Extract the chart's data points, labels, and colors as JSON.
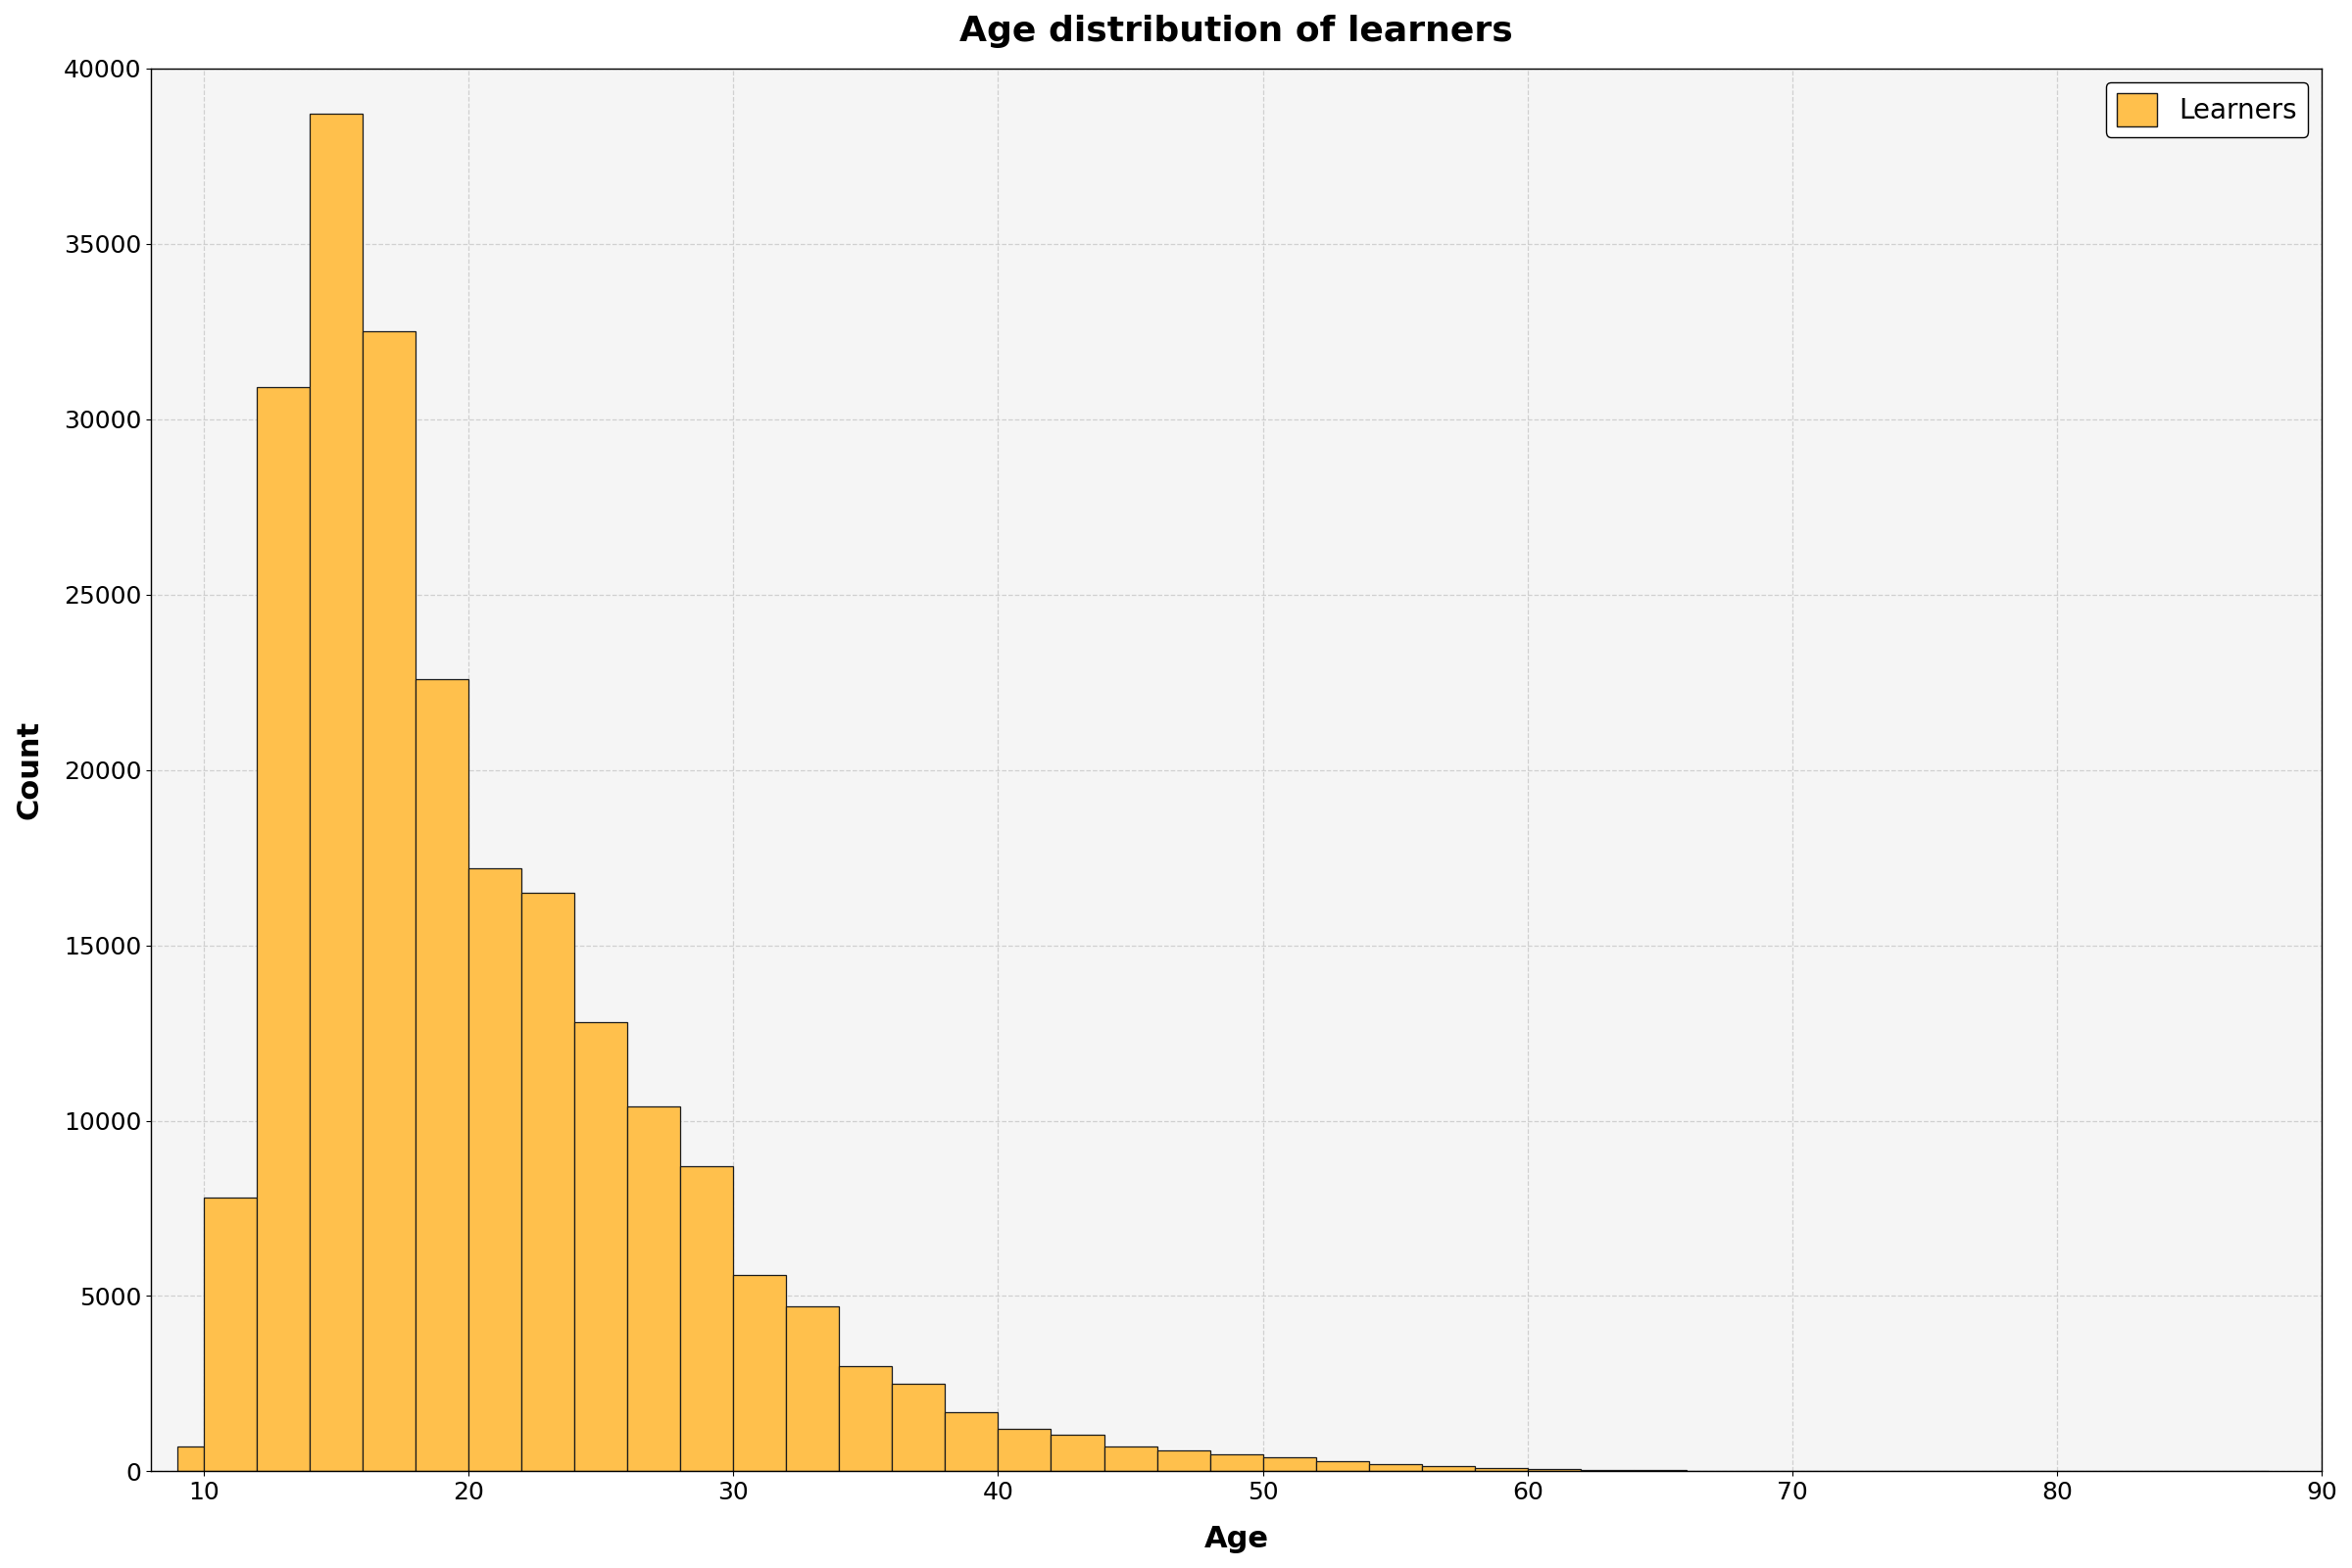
{
  "title": "Age distribution of learners",
  "xlabel": "Age",
  "ylabel": "Count",
  "bar_color": "#FFC04C",
  "bar_edgecolor": "#1a1a1a",
  "legend_label": "Learners",
  "xlim": [
    8,
    90
  ],
  "ylim": [
    0,
    40000
  ],
  "yticks": [
    0,
    5000,
    10000,
    15000,
    20000,
    25000,
    30000,
    35000,
    40000
  ],
  "xticks": [
    10,
    20,
    30,
    40,
    50,
    60,
    70,
    80,
    90
  ],
  "bin_left_edges": [
    9,
    10,
    12,
    14,
    16,
    18,
    20,
    22,
    24,
    26,
    28,
    30,
    32,
    34,
    36,
    38,
    40,
    42,
    44,
    46,
    48,
    50,
    52,
    54,
    56,
    58,
    60,
    62,
    64,
    66,
    68,
    70,
    72,
    74,
    76,
    78,
    80,
    82,
    84,
    86
  ],
  "bin_widths": [
    1,
    2,
    2,
    2,
    2,
    2,
    2,
    2,
    2,
    2,
    2,
    2,
    2,
    2,
    2,
    2,
    2,
    2,
    2,
    2,
    2,
    2,
    2,
    2,
    2,
    2,
    2,
    2,
    2,
    2,
    2,
    2,
    2,
    2,
    2,
    2,
    2,
    2,
    2,
    2
  ],
  "counts": [
    700,
    7800,
    30900,
    38700,
    32500,
    22600,
    17200,
    16500,
    12800,
    10400,
    8700,
    5600,
    4700,
    3000,
    2500,
    1700,
    1200,
    1050,
    700,
    600,
    500,
    400,
    300,
    200,
    150,
    100,
    75,
    50,
    30,
    20,
    15,
    10,
    8,
    5,
    3,
    2,
    2,
    1,
    1,
    1
  ],
  "bg_color": "#f5f5f5",
  "grid_color": "#cccccc",
  "title_fontsize": 26,
  "label_fontsize": 22,
  "tick_fontsize": 18,
  "legend_fontsize": 20
}
